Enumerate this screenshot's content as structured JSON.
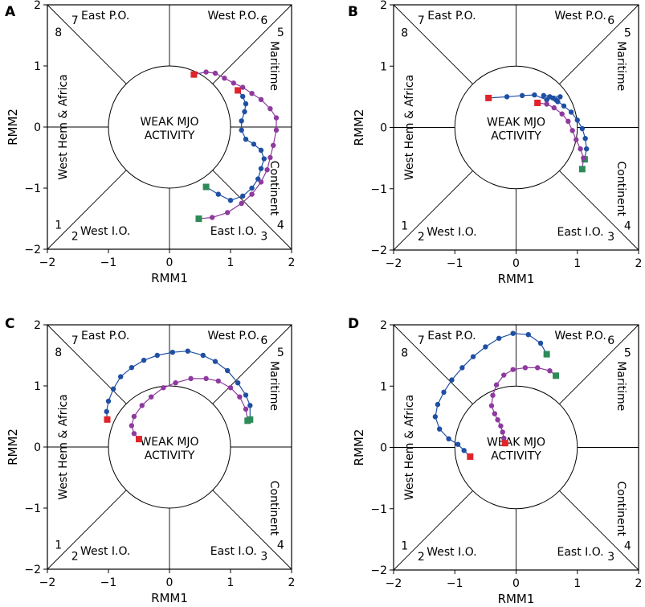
{
  "chart_data": [
    {
      "type": "line",
      "panel_label": "A",
      "xlabel": "RMM1",
      "ylabel": "RMM2",
      "xlim": [
        -2,
        2
      ],
      "ylim": [
        -2,
        2
      ],
      "xticks": [
        "−2",
        "−1",
        "0",
        "1",
        "2"
      ],
      "yticks": [
        "−2",
        "−1",
        "0",
        "1",
        "2"
      ],
      "center_text": [
        "WEAK MJO",
        "ACTIVITY"
      ],
      "region_labels": {
        "top_left": "East P.O.",
        "top_right": "West P.O.",
        "left": "West Hem & Africa",
        "right_upper": "Maritime",
        "right_lower": "Continent",
        "bottom_left": "West I.O.",
        "bottom_right": "East I.O."
      },
      "phase_numbers": [
        "1",
        "2",
        "3",
        "4",
        "5",
        "6",
        "7",
        "8"
      ],
      "series": [
        {
          "name": "blue",
          "color": "#1f4fa3",
          "start_color": "#2e8b57",
          "end_color": "#e0242a",
          "points": [
            [
              0.6,
              -0.98
            ],
            [
              0.8,
              -1.1
            ],
            [
              1.0,
              -1.2
            ],
            [
              1.2,
              -1.13
            ],
            [
              1.35,
              -1.0
            ],
            [
              1.45,
              -0.85
            ],
            [
              1.5,
              -0.68
            ],
            [
              1.55,
              -0.52
            ],
            [
              1.5,
              -0.38
            ],
            [
              1.38,
              -0.28
            ],
            [
              1.25,
              -0.2
            ],
            [
              1.18,
              -0.05
            ],
            [
              1.18,
              0.1
            ],
            [
              1.23,
              0.25
            ],
            [
              1.25,
              0.38
            ],
            [
              1.2,
              0.5
            ],
            [
              1.12,
              0.6
            ]
          ]
        },
        {
          "name": "purple",
          "color": "#8e3a9e",
          "start_color": "#2e8b57",
          "end_color": "#e0242a",
          "points": [
            [
              0.48,
              -1.5
            ],
            [
              0.7,
              -1.48
            ],
            [
              0.95,
              -1.4
            ],
            [
              1.18,
              -1.25
            ],
            [
              1.35,
              -1.1
            ],
            [
              1.5,
              -0.9
            ],
            [
              1.6,
              -0.7
            ],
            [
              1.65,
              -0.5
            ],
            [
              1.7,
              -0.3
            ],
            [
              1.75,
              -0.05
            ],
            [
              1.75,
              0.15
            ],
            [
              1.65,
              0.3
            ],
            [
              1.5,
              0.45
            ],
            [
              1.35,
              0.55
            ],
            [
              1.2,
              0.65
            ],
            [
              1.05,
              0.72
            ],
            [
              0.9,
              0.8
            ],
            [
              0.75,
              0.88
            ],
            [
              0.6,
              0.9
            ],
            [
              0.4,
              0.86
            ]
          ]
        }
      ]
    },
    {
      "type": "line",
      "panel_label": "B",
      "xlabel": "RMM1",
      "ylabel": "RMM2",
      "xlim": [
        -2,
        2
      ],
      "ylim": [
        -2,
        2
      ],
      "xticks": [
        "−2",
        "−1",
        "0",
        "1",
        "2"
      ],
      "yticks": [
        "−2",
        "−1",
        "0",
        "1",
        "2"
      ],
      "center_text": [
        "WEAK MJO",
        "ACTIVITY"
      ],
      "region_labels": {
        "top_left": "East P.O.",
        "top_right": "West P.O.",
        "left": "West Hem & Africa",
        "right_upper": "Maritime",
        "right_lower": "Continent",
        "bottom_left": "West I.O.",
        "bottom_right": "East I.O."
      },
      "phase_numbers": [
        "1",
        "2",
        "3",
        "4",
        "5",
        "6",
        "7",
        "8"
      ],
      "series": [
        {
          "name": "blue",
          "color": "#1f4fa3",
          "start_color": "#2e8b57",
          "end_color": "#e0242a",
          "points": [
            [
              1.12,
              -0.52
            ],
            [
              1.15,
              -0.35
            ],
            [
              1.13,
              -0.18
            ],
            [
              1.08,
              -0.02
            ],
            [
              1.0,
              0.12
            ],
            [
              0.9,
              0.25
            ],
            [
              0.78,
              0.35
            ],
            [
              0.65,
              0.45
            ],
            [
              0.55,
              0.5
            ],
            [
              0.45,
              0.52
            ],
            [
              0.72,
              0.5
            ],
            [
              0.68,
              0.42
            ],
            [
              0.6,
              0.48
            ],
            [
              0.5,
              0.45
            ],
            [
              0.3,
              0.53
            ],
            [
              0.1,
              0.52
            ],
            [
              -0.15,
              0.5
            ],
            [
              -0.45,
              0.48
            ]
          ]
        },
        {
          "name": "purple",
          "color": "#8e3a9e",
          "start_color": "#2e8b57",
          "end_color": "#e0242a",
          "points": [
            [
              1.08,
              -0.68
            ],
            [
              1.1,
              -0.5
            ],
            [
              1.05,
              -0.35
            ],
            [
              0.98,
              -0.2
            ],
            [
              0.92,
              -0.05
            ],
            [
              0.85,
              0.1
            ],
            [
              0.75,
              0.22
            ],
            [
              0.62,
              0.32
            ],
            [
              0.5,
              0.38
            ],
            [
              0.35,
              0.4
            ]
          ]
        }
      ]
    },
    {
      "type": "line",
      "panel_label": "C",
      "xlabel": "RMM1",
      "ylabel": "RMM2",
      "xlim": [
        -2,
        2
      ],
      "ylim": [
        -2,
        2
      ],
      "xticks": [
        "−2",
        "−1",
        "0",
        "1",
        "2"
      ],
      "yticks": [
        "−2",
        "−1",
        "0",
        "1",
        "2"
      ],
      "center_text": [
        "WEAK MJO",
        "ACTIVITY"
      ],
      "region_labels": {
        "top_left": "East P.O.",
        "top_right": "West P.O.",
        "left": "West Hem & Africa",
        "right_upper": "Maritime",
        "right_lower": "Continent",
        "bottom_left": "West I.O.",
        "bottom_right": "East I.O."
      },
      "phase_numbers": [
        "1",
        "2",
        "3",
        "4",
        "5",
        "6",
        "7",
        "8"
      ],
      "series": [
        {
          "name": "blue",
          "color": "#1f4fa3",
          "start_color": "#2e8b57",
          "end_color": "#e0242a",
          "points": [
            [
              1.32,
              0.45
            ],
            [
              1.32,
              0.68
            ],
            [
              1.25,
              0.85
            ],
            [
              1.12,
              1.05
            ],
            [
              0.95,
              1.25
            ],
            [
              0.75,
              1.4
            ],
            [
              0.55,
              1.5
            ],
            [
              0.3,
              1.57
            ],
            [
              0.05,
              1.55
            ],
            [
              -0.2,
              1.5
            ],
            [
              -0.42,
              1.42
            ],
            [
              -0.62,
              1.3
            ],
            [
              -0.8,
              1.15
            ],
            [
              -0.92,
              0.95
            ],
            [
              -1.0,
              0.75
            ],
            [
              -1.03,
              0.58
            ],
            [
              -1.02,
              0.45
            ]
          ]
        },
        {
          "name": "purple",
          "color": "#8e3a9e",
          "start_color": "#2e8b57",
          "end_color": "#e0242a",
          "points": [
            [
              1.28,
              0.43
            ],
            [
              1.25,
              0.62
            ],
            [
              1.15,
              0.82
            ],
            [
              1.0,
              0.97
            ],
            [
              0.8,
              1.08
            ],
            [
              0.6,
              1.12
            ],
            [
              0.35,
              1.12
            ],
            [
              0.1,
              1.05
            ],
            [
              -0.1,
              0.97
            ],
            [
              -0.3,
              0.82
            ],
            [
              -0.45,
              0.68
            ],
            [
              -0.58,
              0.5
            ],
            [
              -0.62,
              0.35
            ],
            [
              -0.58,
              0.22
            ],
            [
              -0.5,
              0.13
            ]
          ]
        }
      ]
    },
    {
      "type": "line",
      "panel_label": "D",
      "xlabel": "RMM1",
      "ylabel": "RMM2",
      "xlim": [
        -2,
        2
      ],
      "ylim": [
        -2,
        2
      ],
      "xticks": [
        "−2",
        "−1",
        "0",
        "1",
        "2"
      ],
      "yticks": [
        "−2",
        "−1",
        "0",
        "1",
        "2"
      ],
      "center_text": [
        "WEAK MJO",
        "ACTIVITY"
      ],
      "region_labels": {
        "top_left": "East P.O.",
        "top_right": "West P.O.",
        "left": "West Hem & Africa",
        "right_upper": "Maritime",
        "right_lower": "Continent",
        "bottom_left": "West I.O.",
        "bottom_right": "East I.O."
      },
      "phase_numbers": [
        "1",
        "2",
        "3",
        "4",
        "5",
        "6",
        "7",
        "8"
      ],
      "series": [
        {
          "name": "blue",
          "color": "#1f4fa3",
          "start_color": "#2e8b57",
          "end_color": "#e0242a",
          "points": [
            [
              0.5,
              1.52
            ],
            [
              0.4,
              1.7
            ],
            [
              0.2,
              1.84
            ],
            [
              -0.05,
              1.86
            ],
            [
              -0.28,
              1.78
            ],
            [
              -0.5,
              1.64
            ],
            [
              -0.7,
              1.48
            ],
            [
              -0.88,
              1.3
            ],
            [
              -1.05,
              1.1
            ],
            [
              -1.18,
              0.9
            ],
            [
              -1.28,
              0.7
            ],
            [
              -1.32,
              0.5
            ],
            [
              -1.25,
              0.3
            ],
            [
              -1.1,
              0.14
            ],
            [
              -0.95,
              0.05
            ],
            [
              -0.85,
              -0.05
            ],
            [
              -0.75,
              -0.15
            ]
          ]
        },
        {
          "name": "purple",
          "color": "#8e3a9e",
          "start_color": "#2e8b57",
          "end_color": "#e0242a",
          "points": [
            [
              0.65,
              1.17
            ],
            [
              0.55,
              1.25
            ],
            [
              0.35,
              1.3
            ],
            [
              0.15,
              1.3
            ],
            [
              -0.05,
              1.27
            ],
            [
              -0.2,
              1.18
            ],
            [
              -0.32,
              1.02
            ],
            [
              -0.38,
              0.85
            ],
            [
              -0.4,
              0.68
            ],
            [
              -0.35,
              0.55
            ],
            [
              -0.3,
              0.45
            ],
            [
              -0.25,
              0.35
            ],
            [
              -0.22,
              0.25
            ],
            [
              -0.2,
              0.15
            ],
            [
              -0.18,
              0.07
            ]
          ]
        }
      ]
    }
  ]
}
